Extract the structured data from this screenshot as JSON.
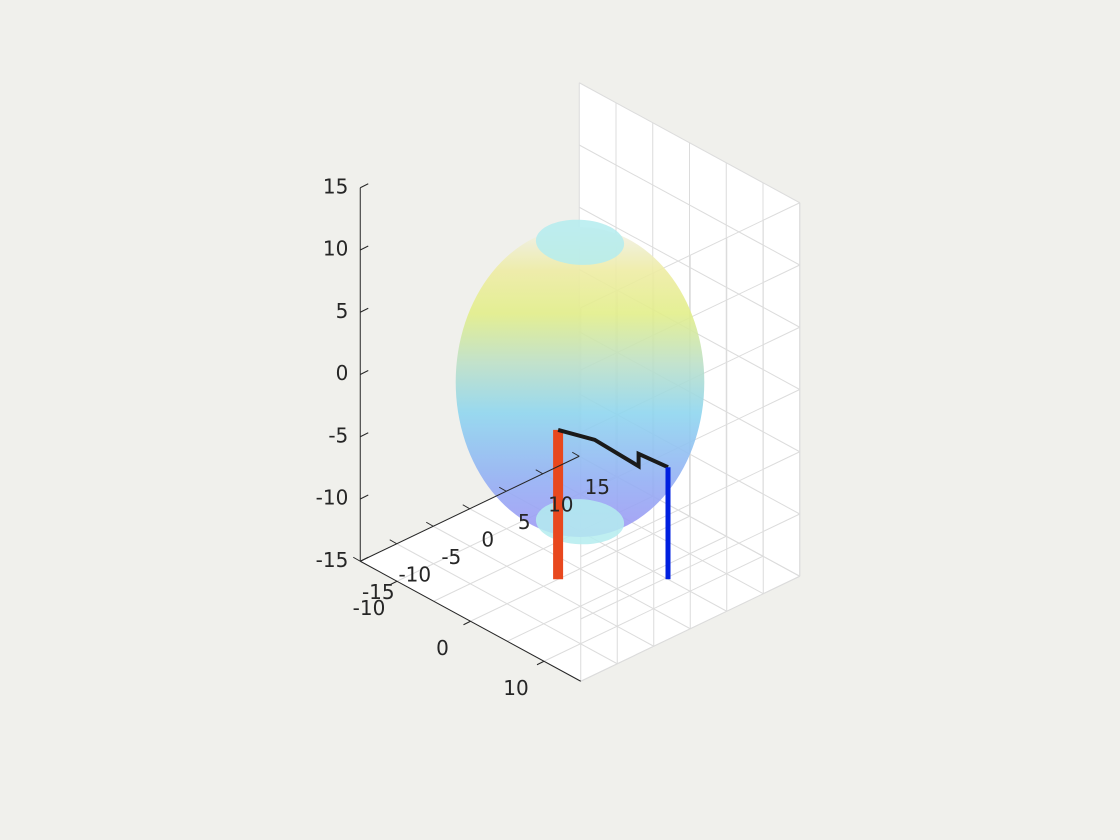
{
  "window": {
    "background": "#f0f0ec"
  },
  "chart_data": {
    "type": "surface3d",
    "title": "",
    "xlabel": "",
    "ylabel": "",
    "zlabel": "",
    "xlim": [
      -15,
      15
    ],
    "ylim": [
      -15,
      15
    ],
    "zlim": [
      -15,
      15
    ],
    "x_ticks": [
      {
        "value": -10,
        "label": "-10"
      },
      {
        "value": 0,
        "label": "0"
      },
      {
        "value": 10,
        "label": "10"
      }
    ],
    "y_ticks": [
      {
        "value": -15,
        "label": "-15"
      },
      {
        "value": -10,
        "label": "-10"
      },
      {
        "value": -5,
        "label": "-5"
      },
      {
        "value": 0,
        "label": "0"
      },
      {
        "value": 5,
        "label": "5"
      },
      {
        "value": 10,
        "label": "10"
      },
      {
        "value": 15,
        "label": "15"
      }
    ],
    "z_ticks": [
      {
        "value": 15,
        "label": "15"
      },
      {
        "value": 10,
        "label": "10"
      },
      {
        "value": 5,
        "label": "5"
      },
      {
        "value": 0,
        "label": "0"
      },
      {
        "value": -5,
        "label": "-5"
      },
      {
        "value": -10,
        "label": "-10"
      },
      {
        "value": -15,
        "label": "-15"
      }
    ],
    "grid": true,
    "surface": {
      "shape": "truncated-sphere",
      "radius": 12,
      "z_range": [
        -12,
        12
      ],
      "colormap": "parula",
      "transparent": true
    },
    "lines": [
      {
        "color": "#e8481e",
        "color_end": "#d21f4a",
        "points": [
          [
            0,
            -3,
            -3
          ],
          [
            0,
            -3,
            -15
          ]
        ]
      },
      {
        "color": "#1a1a1a",
        "points": [
          [
            0,
            -3,
            -3
          ],
          [
            2,
            0,
            -4
          ],
          [
            5,
            3,
            -6
          ],
          [
            5,
            3,
            -5
          ],
          [
            7,
            5,
            -6
          ]
        ]
      },
      {
        "color": "#0020e0",
        "points": [
          [
            7,
            5,
            -6
          ],
          [
            7,
            5,
            -15
          ]
        ]
      }
    ]
  }
}
